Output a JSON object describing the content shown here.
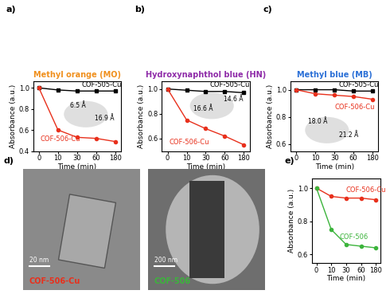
{
  "chart_data": [
    {
      "type": "line",
      "panel": "a)",
      "title": "Methyl orange (MO)",
      "color": "#f0901e",
      "x_label": "Time (min)",
      "y_label": "Absorbance (a.u.)",
      "categories": [
        "0",
        "10",
        "30",
        "60",
        "180"
      ],
      "ylim": [
        0.4,
        1.06
      ],
      "yticks": [
        {
          "value": 0.4,
          "label": "0.4"
        },
        {
          "value": 0.6,
          "label": "0.6"
        },
        {
          "value": 0.8,
          "label": "0.8"
        },
        {
          "value": 1.0,
          "label": "1.0"
        }
      ],
      "series": [
        {
          "name": "COF-505-Cu",
          "color": "#000000",
          "marker": "s",
          "values": [
            1.0,
            0.98,
            0.97,
            0.97,
            0.97
          ]
        },
        {
          "name": "COF-506-Cu",
          "color": "#e8301c",
          "marker": "o",
          "values": [
            1.0,
            0.6,
            0.53,
            0.52,
            0.49
          ]
        }
      ],
      "annotations": [
        "6.5 Å",
        "16.9 Å"
      ]
    },
    {
      "type": "line",
      "panel": "b)",
      "title": "Hydroxynaphthol blue (HN)",
      "color": "#8e2aa8",
      "x_label": "Time (min)",
      "y_label": "Absorbance (a.u.)",
      "categories": [
        "0",
        "10",
        "30",
        "60",
        "180"
      ],
      "ylim": [
        0.5,
        1.06
      ],
      "yticks": [
        {
          "value": 0.6,
          "label": "0.6"
        },
        {
          "value": 0.8,
          "label": "0.8"
        },
        {
          "value": 1.0,
          "label": "1.0"
        }
      ],
      "series": [
        {
          "name": "COF-505-Cu",
          "color": "#000000",
          "marker": "s",
          "values": [
            1.0,
            0.99,
            0.98,
            0.98,
            0.97
          ]
        },
        {
          "name": "COF-506-Cu",
          "color": "#e8301c",
          "marker": "o",
          "values": [
            1.0,
            0.75,
            0.68,
            0.62,
            0.55
          ]
        }
      ],
      "annotations": [
        "16.6 Å",
        "14.6 Å"
      ]
    },
    {
      "type": "line",
      "panel": "c)",
      "title": "Methyl blue (MB)",
      "color": "#2a6fd6",
      "x_label": "Time (min)",
      "y_label": "Absorbance (a.u.)",
      "categories": [
        "0",
        "10",
        "30",
        "60",
        "180"
      ],
      "ylim": [
        0.55,
        1.06
      ],
      "yticks": [
        {
          "value": 0.6,
          "label": "0.6"
        },
        {
          "value": 0.8,
          "label": "0.8"
        },
        {
          "value": 1.0,
          "label": "1.0"
        }
      ],
      "series": [
        {
          "name": "COF-505-Cu",
          "color": "#000000",
          "marker": "s",
          "values": [
            1.0,
            1.0,
            1.0,
            0.99,
            0.99
          ]
        },
        {
          "name": "COF-506-Cu",
          "color": "#e8301c",
          "marker": "o",
          "values": [
            1.0,
            0.97,
            0.96,
            0.95,
            0.93
          ]
        }
      ],
      "annotations": [
        "18.0 Å",
        "21.2 Å"
      ]
    },
    {
      "type": "line",
      "panel": "e)",
      "x_label": "Time (min)",
      "y_label": "Absorbance (a.u.)",
      "categories": [
        "0",
        "10",
        "30",
        "60",
        "180"
      ],
      "ylim": [
        0.55,
        1.06
      ],
      "yticks": [
        {
          "value": 0.6,
          "label": "0.6"
        },
        {
          "value": 0.8,
          "label": "0.8"
        },
        {
          "value": 1.0,
          "label": "1.0"
        }
      ],
      "series": [
        {
          "name": "COF-506-Cu",
          "color": "#e8301c",
          "marker": "o",
          "values": [
            1.0,
            0.95,
            0.94,
            0.94,
            0.93
          ]
        },
        {
          "name": "COF-506",
          "color": "#3cb43c",
          "marker": "o",
          "values": [
            1.0,
            0.75,
            0.66,
            0.65,
            0.64
          ]
        }
      ]
    }
  ],
  "images": [
    {
      "panel": "d)",
      "label": "COF-506-Cu",
      "color": "#e8301c",
      "scale_bar": "20 nm"
    },
    {
      "label": "COF-506",
      "color": "#3cb43c",
      "scale_bar": "200 nm"
    }
  ]
}
